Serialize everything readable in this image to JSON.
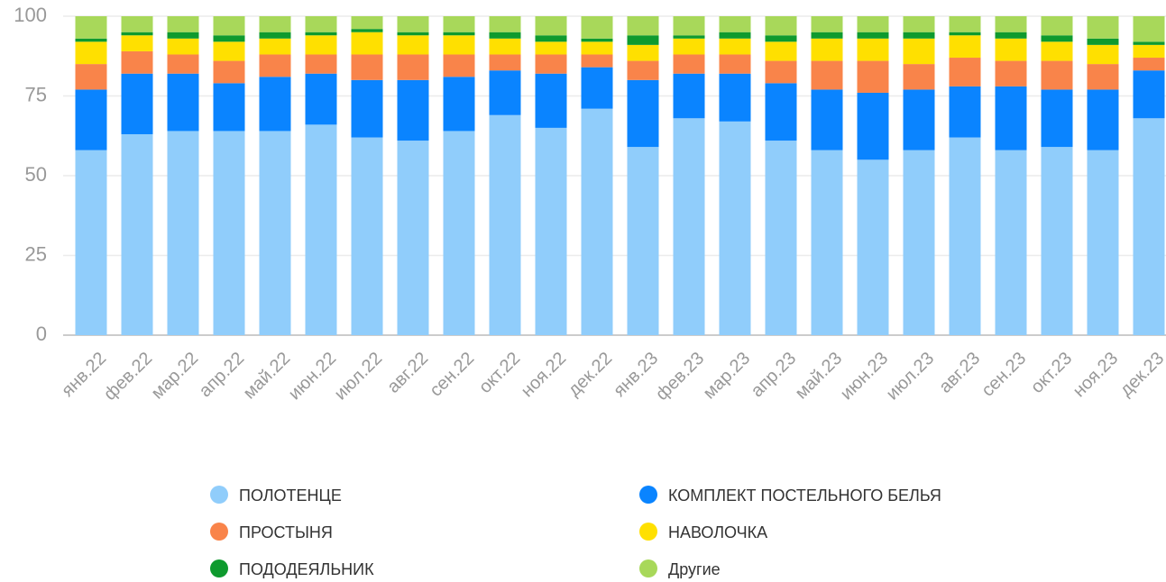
{
  "chart_data": {
    "type": "stacked_bar",
    "categories": [
      "янв.22",
      "фев.22",
      "мар.22",
      "апр.22",
      "май.22",
      "июн.22",
      "июл.22",
      "авг.22",
      "сен.22",
      "окт.22",
      "ноя.22",
      "дек.22",
      "янв.23",
      "фев.23",
      "мар.23",
      "апр.23",
      "май.23",
      "июн.23",
      "июл.23",
      "авг.23",
      "сен.23",
      "окт.23",
      "ноя.23",
      "дек.23"
    ],
    "series": [
      {
        "name": "ПОЛОТЕНЦЕ",
        "color": "#90cdfb",
        "values": [
          58,
          63,
          64,
          64,
          64,
          66,
          62,
          61,
          64,
          69,
          65,
          71,
          59,
          68,
          67,
          61,
          58,
          55,
          58,
          62,
          58,
          59,
          58,
          68
        ]
      },
      {
        "name": "КОМПЛЕКТ ПОСТЕЛЬНОГО БЕЛЬЯ",
        "color": "#0a84ff",
        "values": [
          19,
          19,
          18,
          15,
          17,
          16,
          18,
          19,
          17,
          14,
          17,
          13,
          21,
          14,
          15,
          18,
          19,
          21,
          19,
          16,
          20,
          18,
          19,
          15
        ]
      },
      {
        "name": "ПРОСТЫНЯ",
        "color": "#f9844a",
        "values": [
          8,
          7,
          6,
          7,
          7,
          6,
          8,
          8,
          7,
          5,
          6,
          4,
          6,
          6,
          6,
          7,
          9,
          10,
          8,
          9,
          8,
          9,
          8,
          4
        ]
      },
      {
        "name": "НАВОЛОЧКА",
        "color": "#ffe000",
        "values": [
          7,
          5,
          5,
          6,
          5,
          6,
          7,
          6,
          6,
          5,
          4,
          4,
          5,
          5,
          5,
          6,
          7,
          7,
          8,
          7,
          7,
          6,
          6,
          4
        ]
      },
      {
        "name": "ПОДОДЕЯЛЬНИК",
        "color": "#0e9a2e",
        "values": [
          1,
          1,
          2,
          2,
          2,
          1,
          1,
          1,
          1,
          2,
          2,
          1,
          3,
          1,
          2,
          2,
          2,
          2,
          2,
          1,
          2,
          2,
          2,
          1
        ]
      },
      {
        "name": "Другие",
        "color": "#a8d85a",
        "values": [
          7,
          5,
          5,
          6,
          5,
          5,
          4,
          5,
          5,
          5,
          6,
          7,
          6,
          6,
          5,
          6,
          5,
          5,
          5,
          5,
          5,
          6,
          7,
          8
        ]
      }
    ],
    "ylim": [
      0,
      100
    ],
    "yticks": [
      0,
      25,
      50,
      75,
      100
    ],
    "grid": true
  }
}
